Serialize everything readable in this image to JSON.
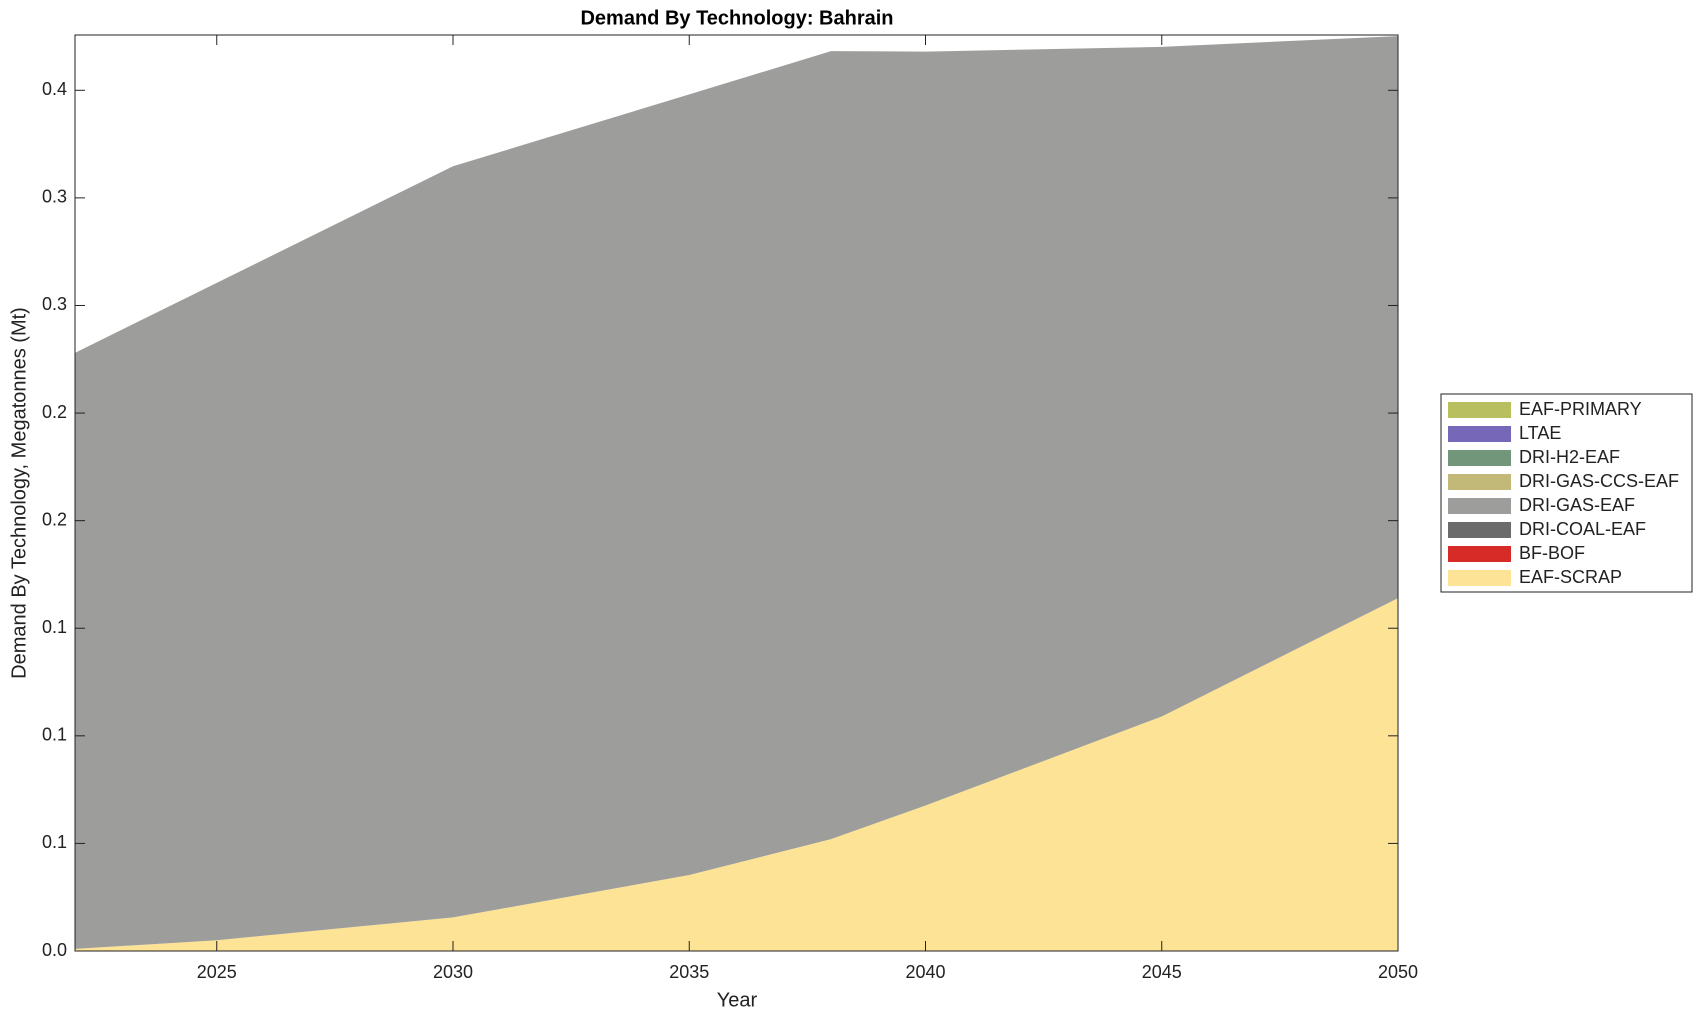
{
  "chart_data": {
    "type": "stacked-area",
    "title": "Demand By Technology: Bahrain",
    "x_label": "Year",
    "y_label": "Demand By Technology, Megatonnes (Mt)",
    "x": [
      2022,
      2025,
      2030,
      2035,
      2038,
      2040,
      2045,
      2050
    ],
    "xlim": [
      2022,
      2050
    ],
    "xticks": [
      2025,
      2030,
      2035,
      2040,
      2045,
      2050
    ],
    "ylim": [
      0,
      0.4257
    ],
    "yticks": [
      {
        "value": 0,
        "label": "0.0"
      },
      {
        "value": 0.05,
        "label": "0.1"
      },
      0.1,
      {
        "value": 0.15,
        "label": "0.1"
      },
      0.2,
      {
        "value": 0.25,
        "label": "0.2"
      },
      0.3,
      {
        "value": 0.35,
        "label": "0.3"
      },
      0.4
    ],
    "series": [
      {
        "name": "EAF-SCRAP",
        "color": "#fde395",
        "values": [
          0.001,
          0.005,
          0.0156,
          0.0353,
          0.052,
          0.0676,
          0.109,
          0.164
        ]
      },
      {
        "name": "BF-BOF",
        "color": "#d62b27",
        "values": [
          0,
          0,
          0,
          0,
          0,
          0,
          0,
          0
        ]
      },
      {
        "name": "DRI-COAL-EAF",
        "color": "#6b6b6b",
        "values": [
          0,
          0,
          0,
          0,
          0,
          0,
          0,
          0
        ]
      },
      {
        "name": "DRI-GAS-EAF",
        "color": "#9d9d9b",
        "values": [
          0.277,
          0.3055,
          0.3491,
          0.3628,
          0.3662,
          0.3504,
          0.3112,
          0.2612
        ]
      },
      {
        "name": "DRI-GAS-CCS-EAF",
        "color": "#c2b878",
        "values": [
          0,
          0,
          0,
          0,
          0,
          0,
          0,
          0
        ]
      },
      {
        "name": "DRI-H2-EAF",
        "color": "#72967a",
        "values": [
          0,
          0,
          0,
          0,
          0,
          0,
          0,
          0
        ]
      },
      {
        "name": "LTAE",
        "color": "#7667b8",
        "values": [
          0,
          0,
          0,
          0,
          0,
          0,
          0,
          0
        ]
      },
      {
        "name": "EAF-PRIMARY",
        "color": "#b8bf5e",
        "values": [
          0,
          0,
          0,
          0,
          0,
          0,
          0,
          0
        ]
      }
    ]
  }
}
